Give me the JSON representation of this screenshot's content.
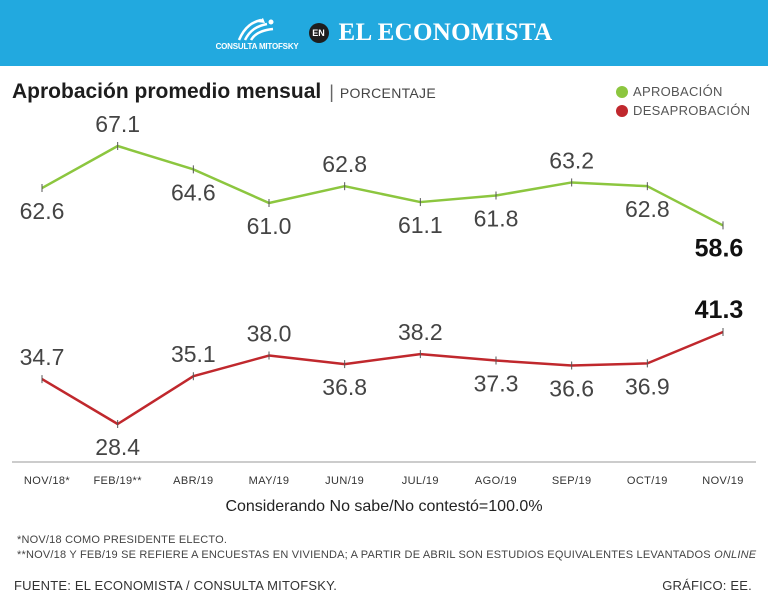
{
  "header": {
    "logo_text": "CONSULTA MITOFSKY",
    "en_label": "EN",
    "brand": "EL ECONOMISTA",
    "color": "#22a9df"
  },
  "title": "Aprobación promedio mensual",
  "separator": "|",
  "subtitle": "PORCENTAJE",
  "legend": {
    "approval": "APROBACIÓN",
    "disapproval": "DESAPROBACIÓN"
  },
  "caption": "Considerando No sabe/No contestó=100.0%",
  "notes": {
    "note1": "*NOV/18 COMO PRESIDENTE ELECTO.",
    "note2_prefix": "**NOV/18 Y FEB/19 SE REFIERE A ENCUESTAS EN VIVIENDA; A PARTIR DE ABRIL SON ESTUDIOS EQUIVALENTES LEVANTADOS",
    "note2_italic": "ONLINE"
  },
  "footer": {
    "source": "FUENTE: EL ECONOMISTA / CONSULTA MITOFSKY.",
    "credit": "GRÁFICO: EE."
  },
  "chart_data": {
    "type": "line",
    "categories": [
      "NOV/18*",
      "FEB/19**",
      "ABR/19",
      "MAY/19",
      "JUN/19",
      "JUL/19",
      "AGO/19",
      "SEP/19",
      "OCT/19",
      "NOV/19"
    ],
    "series": [
      {
        "name": "APROBACIÓN",
        "color": "#8cc63f",
        "values": [
          62.6,
          67.1,
          64.6,
          61.0,
          62.8,
          61.1,
          61.8,
          63.2,
          62.8,
          58.6
        ],
        "labels": [
          "62.6",
          "67.1",
          "64.6",
          "61.0",
          "62.8",
          "61.1",
          "61.8",
          "63.2",
          "62.8",
          "58.6"
        ]
      },
      {
        "name": "DESAPROBACIÓN",
        "color": "#c0282d",
        "values": [
          34.7,
          28.4,
          35.1,
          38.0,
          36.8,
          38.2,
          37.3,
          36.6,
          36.9,
          41.3
        ],
        "labels": [
          "34.7",
          "28.4",
          "35.1",
          "38.0",
          "36.8",
          "38.2",
          "37.3",
          "36.6",
          "36.9",
          "41.3"
        ]
      }
    ],
    "ylabel": "Porcentaje",
    "grid": false
  }
}
